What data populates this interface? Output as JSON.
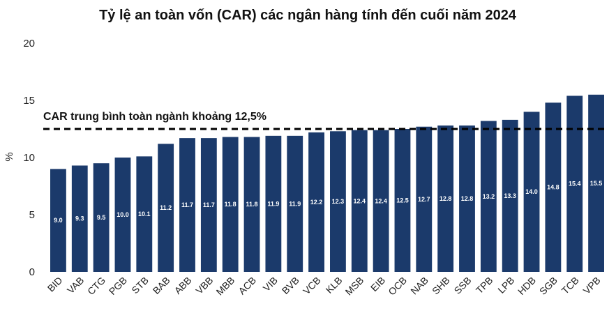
{
  "chart_data": {
    "type": "bar",
    "title": "Tỷ lệ an toàn vốn (CAR) các ngân hàng tính đến cuối năm 2024",
    "xlabel": "",
    "ylabel": "%",
    "ylim": [
      0,
      20
    ],
    "yticks": [
      "0",
      "5",
      "10",
      "15",
      "20"
    ],
    "categories": [
      "BID",
      "VAB",
      "CTG",
      "PGB",
      "STB",
      "BAB",
      "ABB",
      "VBB",
      "MBB",
      "ACB",
      "VIB",
      "BVB",
      "VCB",
      "KLB",
      "MSB",
      "EIB",
      "OCB",
      "NAB",
      "SHB",
      "SSB",
      "TPB",
      "LPB",
      "HDB",
      "SGB",
      "TCB",
      "VPB"
    ],
    "values": [
      9.0,
      9.3,
      9.5,
      10.0,
      10.1,
      11.2,
      11.7,
      11.7,
      11.8,
      11.8,
      11.9,
      11.9,
      12.2,
      12.3,
      12.4,
      12.4,
      12.5,
      12.7,
      12.8,
      12.8,
      13.2,
      13.3,
      14.0,
      14.8,
      15.4,
      15.5
    ],
    "data_labels": [
      "9.0",
      "9.3",
      "9.5",
      "10.0",
      "10.1",
      "11.2",
      "11.7",
      "11.7",
      "11.8",
      "11.8",
      "11.9",
      "11.9",
      "12.2",
      "12.3",
      "12.4",
      "12.4",
      "12.5",
      "12.7",
      "12.8",
      "12.8",
      "13.2",
      "13.3",
      "14.0",
      "14.8",
      "15.4",
      "15.5"
    ],
    "reference_line": {
      "value": 12.5,
      "label": "CAR trung bình toàn ngành khoảng 12,5%",
      "style": "dashed",
      "color": "#000000"
    },
    "bar_color": "#1b3a6b",
    "grid": false,
    "legend": "none"
  }
}
